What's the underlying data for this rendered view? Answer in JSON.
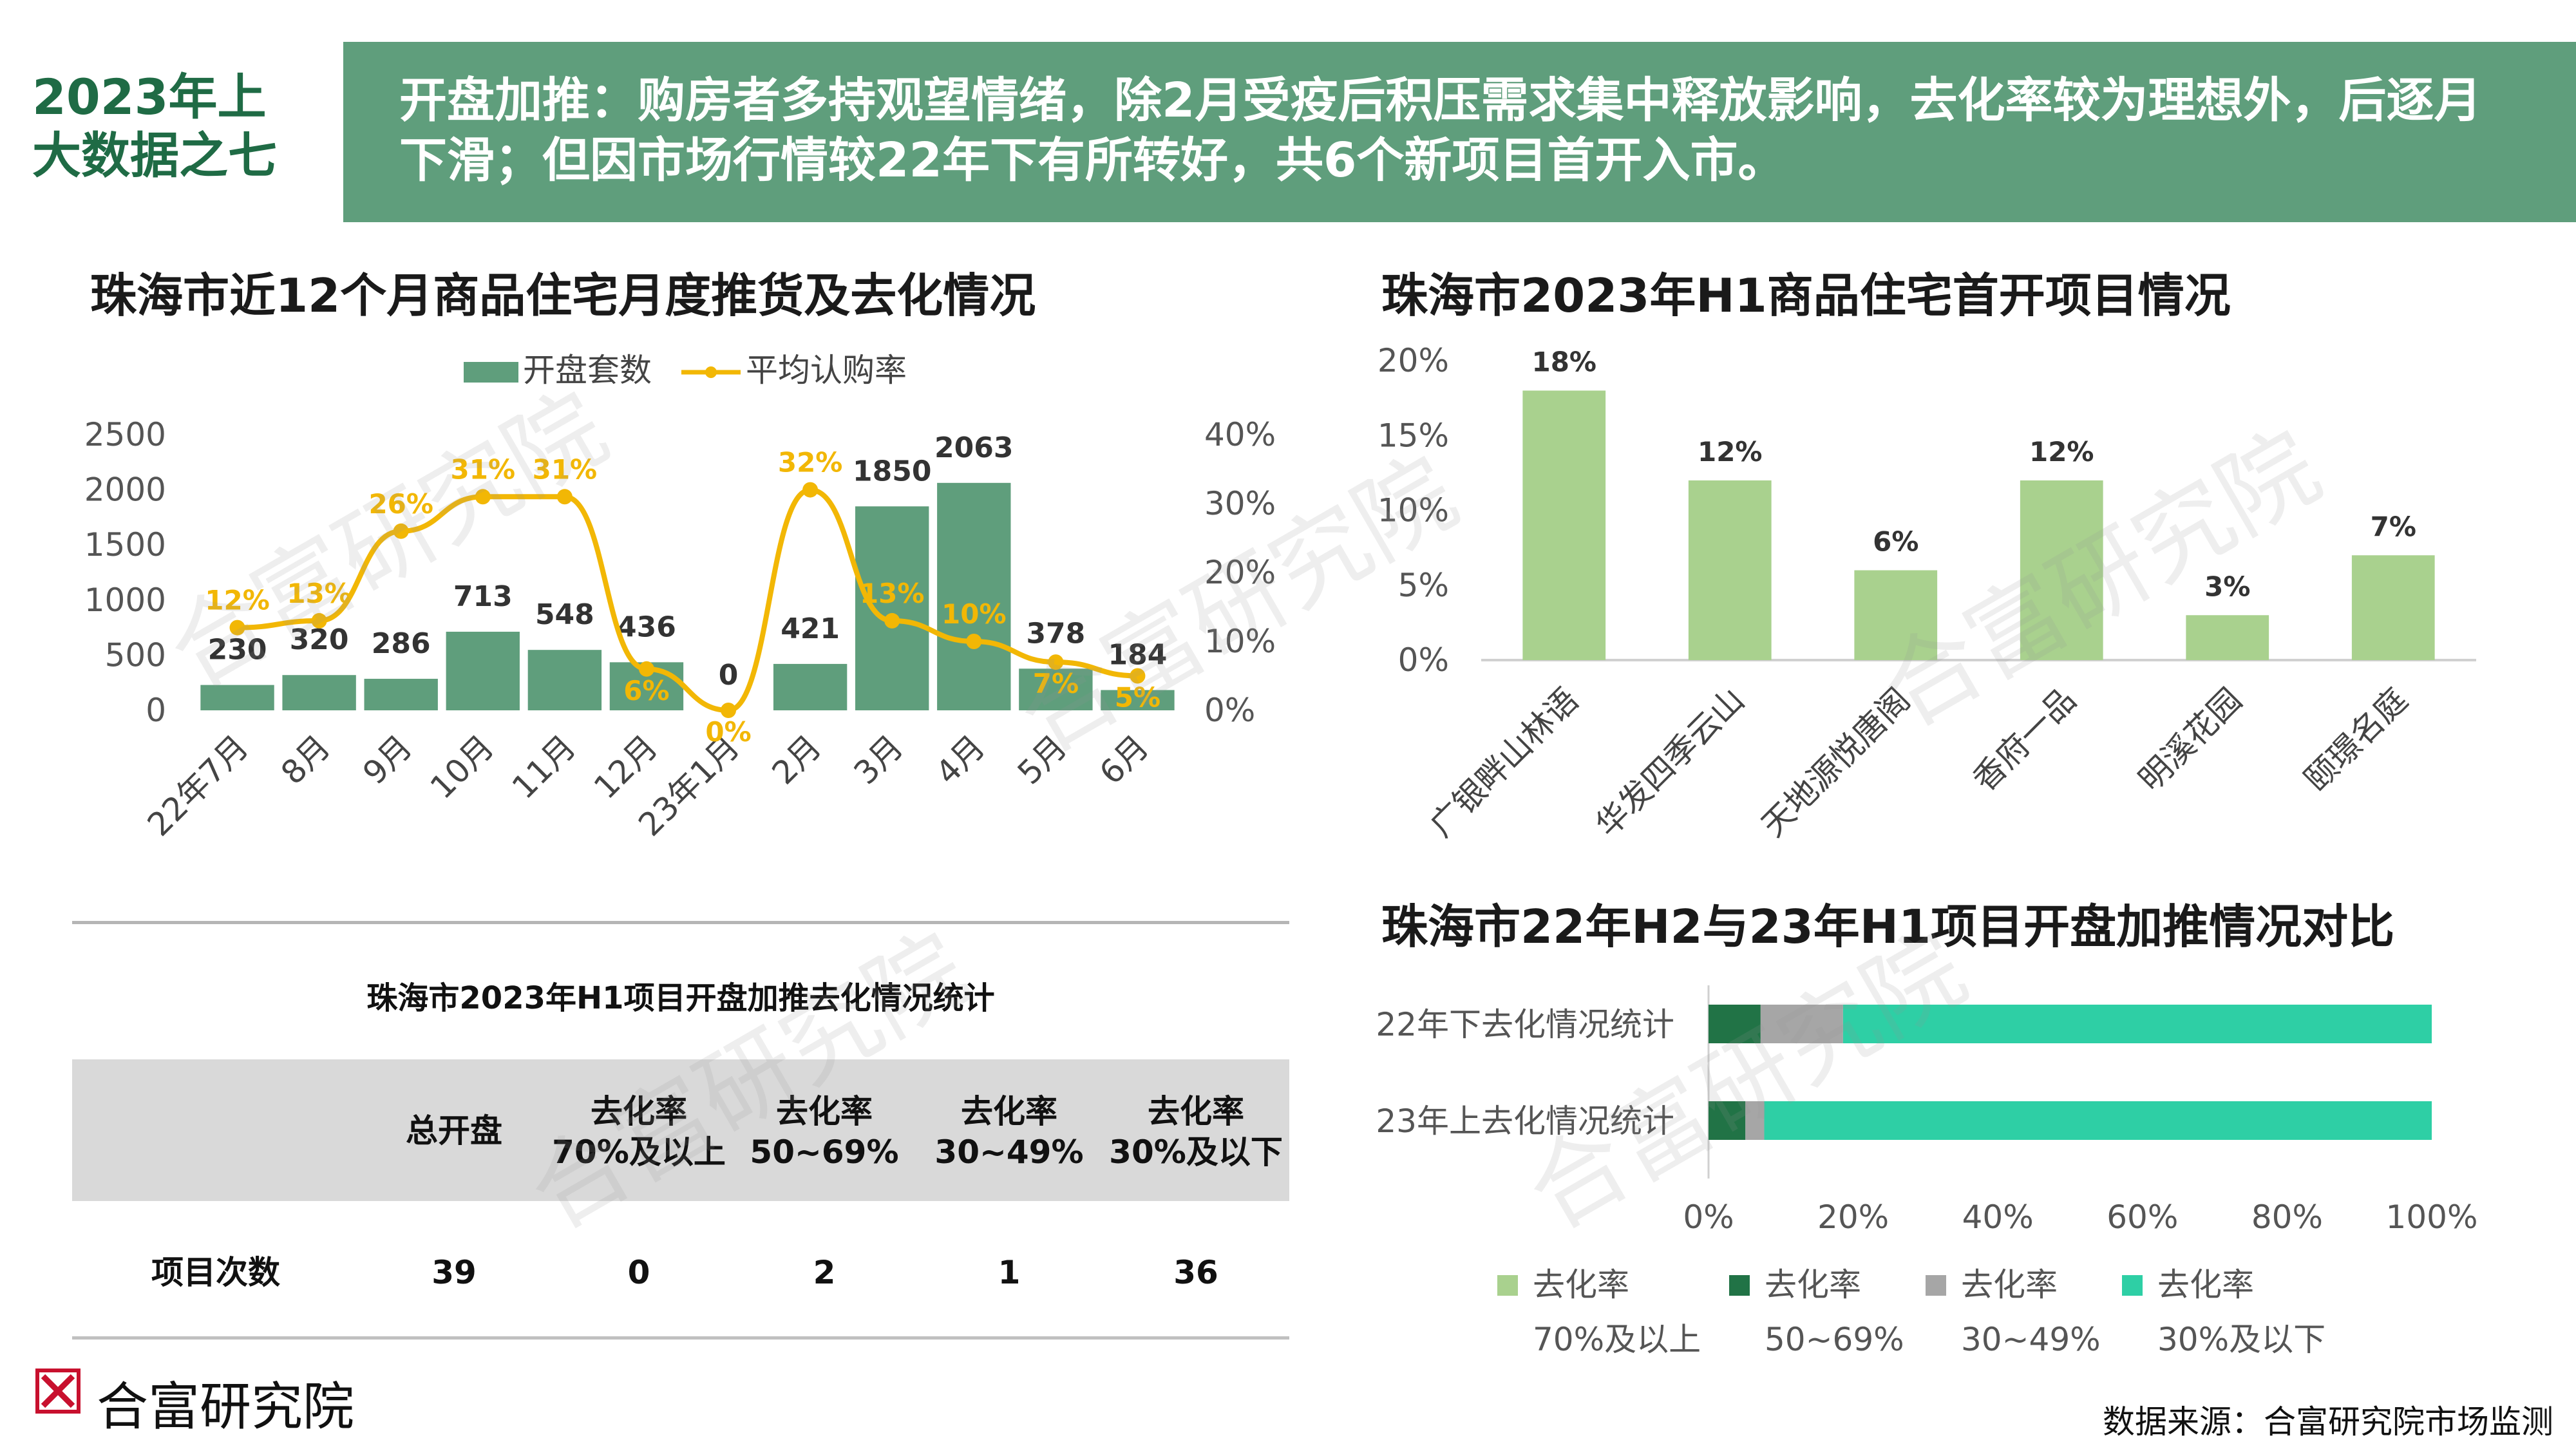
{
  "header": {
    "label_line1": "2023年上",
    "label_line2": "大数据之七",
    "summary_line1": "开盘加推：购房者多持观望情绪，除2月受疫后积压需求集中释放影响，去化率较为理想外，后逐月",
    "summary_line2": "下滑；但因市场行情较22年下有所转好，共6个新项目首开入市。",
    "band_color": "#5f9e7c"
  },
  "watermark_text": "合富研究院",
  "chart_data": [
    {
      "type": "bar",
      "title": "珠海市近12个月商品住宅月度推货及去化情况",
      "categories": [
        "22年7月",
        "8月",
        "9月",
        "10月",
        "11月",
        "12月",
        "23年1月",
        "2月",
        "3月",
        "4月",
        "5月",
        "6月"
      ],
      "series": [
        {
          "name": "开盘套数",
          "kind": "bar",
          "axis": "left",
          "color": "#5f9e7c",
          "values": [
            230,
            320,
            286,
            713,
            548,
            436,
            0,
            421,
            1850,
            2063,
            378,
            184
          ]
        },
        {
          "name": "平均认购率",
          "kind": "line",
          "axis": "right",
          "color": "#f2b705",
          "values": [
            12,
            13,
            26,
            31,
            31,
            6,
            0,
            32,
            13,
            10,
            7,
            5
          ],
          "labels": [
            "12%",
            "13%",
            "26%",
            "31%",
            "31%",
            "6%",
            "0%",
            "32%",
            "13%",
            "10%",
            "7%",
            "5%"
          ]
        }
      ],
      "y_ticks": [
        "2500",
        "2000",
        "1500",
        "1000",
        "500",
        "0"
      ],
      "ylim": [
        0,
        2500
      ],
      "y2_ticks": [
        "40%",
        "30%",
        "20%",
        "10%",
        "0%"
      ],
      "y2lim": [
        0,
        40
      ],
      "legend": "top",
      "grid": false
    },
    {
      "type": "bar",
      "title": "珠海市2023年H1商品住宅首开项目情况",
      "categories": [
        "广银畔山林语",
        "华发四季云山",
        "天地源悦唐阁",
        "香府一品",
        "明溪花园",
        "颐璟名庭"
      ],
      "values": [
        18,
        12,
        6,
        12,
        3,
        7
      ],
      "labels": [
        "18%",
        "12%",
        "6%",
        "12%",
        "3%",
        "7%"
      ],
      "y_ticks": [
        "20%",
        "15%",
        "10%",
        "5%",
        "0%"
      ],
      "ylim": [
        0,
        20
      ],
      "color": "#a9d18e",
      "grid": false
    },
    {
      "type": "bar",
      "orientation": "horizontal-stacked-100",
      "title": "珠海市22年H2与23年H1项目开盘加推情况对比",
      "categories": [
        "22年下去化情况统计",
        "23年上去化情况统计"
      ],
      "series": [
        {
          "name": "去化率 70%及以上",
          "name_line1": "去化率",
          "name_line2": "70%及以上",
          "color": "#a9d18e",
          "values": [
            0,
            0
          ]
        },
        {
          "name": "去化率 50~69%",
          "name_line1": "去化率",
          "name_line2": "50~69%",
          "color": "#217346",
          "values": [
            7.2,
            5.1
          ]
        },
        {
          "name": "去化率 30~49%",
          "name_line1": "去化率",
          "name_line2": "30~49%",
          "color": "#a6a6a6",
          "values": [
            11.4,
            2.6
          ]
        },
        {
          "name": "去化率 30%及以下",
          "name_line1": "去化率",
          "name_line2": "30%及以下",
          "color": "#2ecfa5",
          "values": [
            81.4,
            92.3
          ]
        }
      ],
      "x_ticks": [
        "0%",
        "20%",
        "40%",
        "60%",
        "80%",
        "100%"
      ],
      "xlim": [
        0,
        100
      ],
      "legend": "bottom"
    },
    {
      "type": "table",
      "title": "珠海市2023年H1项目开盘加推去化情况统计",
      "columns": [
        {
          "line1": "",
          "line2": ""
        },
        {
          "line1": "总开盘",
          "line2": ""
        },
        {
          "line1": "去化率",
          "line2": "70%及以上"
        },
        {
          "line1": "去化率",
          "line2": "50~69%"
        },
        {
          "line1": "去化率",
          "line2": "30~49%"
        },
        {
          "line1": "去化率",
          "line2": "30%及以下"
        }
      ],
      "rows": [
        [
          "项目次数",
          "39",
          "0",
          "2",
          "1",
          "36"
        ]
      ]
    }
  ],
  "footer": {
    "logo_text": "合富研究院",
    "source": "数据来源：合富研究院市场监测",
    "logo_color": "#c8102e"
  }
}
